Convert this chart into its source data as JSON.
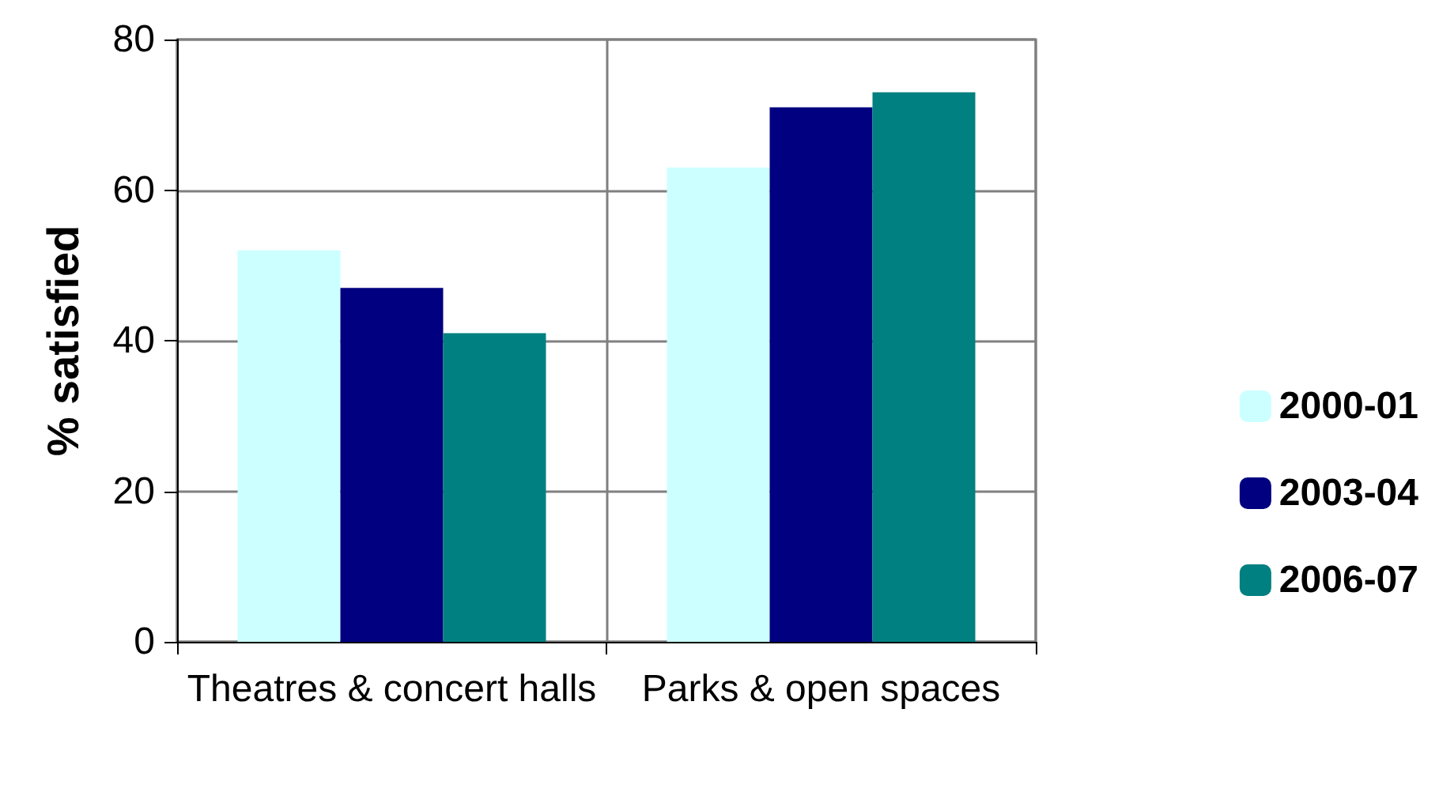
{
  "chart_data": {
    "type": "bar",
    "ylabel": "% satisfied",
    "categories": [
      "Theatres & concert halls",
      "Parks & open spaces"
    ],
    "series": [
      {
        "name": "2000-01",
        "color": "#ccffff",
        "values": [
          52,
          63
        ]
      },
      {
        "name": "2003-04",
        "color": "#000080",
        "values": [
          47,
          71
        ]
      },
      {
        "name": "2006-07",
        "color": "#008080",
        "values": [
          41,
          73
        ]
      }
    ],
    "ylim": [
      0,
      80
    ],
    "yticks": [
      0,
      20,
      40,
      60,
      80
    ],
    "grid": true,
    "legend": "right"
  }
}
